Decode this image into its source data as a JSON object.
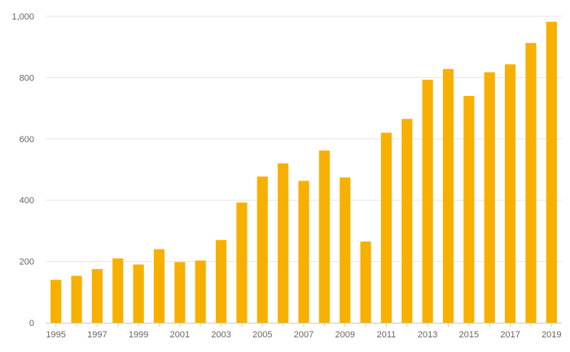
{
  "chart_data": {
    "type": "bar",
    "categories": [
      "1995",
      "1996",
      "1997",
      "1998",
      "1999",
      "2000",
      "2001",
      "2002",
      "2003",
      "2004",
      "2005",
      "2006",
      "2007",
      "2008",
      "2009",
      "2010",
      "2011",
      "2012",
      "2013",
      "2014",
      "2015",
      "2016",
      "2017",
      "2018",
      "2019"
    ],
    "x_tick_labels": [
      "1995",
      "1997",
      "1999",
      "2001",
      "2003",
      "2005",
      "2007",
      "2009",
      "2011",
      "2013",
      "2015",
      "2017",
      "2019"
    ],
    "values": [
      140,
      153,
      175,
      210,
      190,
      240,
      198,
      203,
      270,
      392,
      477,
      520,
      463,
      562,
      474,
      265,
      620,
      665,
      793,
      828,
      740,
      817,
      843,
      913,
      982
    ],
    "y_ticks": [
      0,
      200,
      400,
      600,
      800,
      1000
    ],
    "y_tick_labels": [
      "0",
      "200",
      "400",
      "600",
      "800",
      "1,000"
    ],
    "ylim": [
      0,
      1000
    ],
    "grid": true,
    "bar_color": "#F8B000",
    "grid_color": "#E6E6E6",
    "axis_color": "#CCCCCC",
    "text_color": "#666666",
    "title": "",
    "xlabel": "",
    "ylabel": ""
  }
}
